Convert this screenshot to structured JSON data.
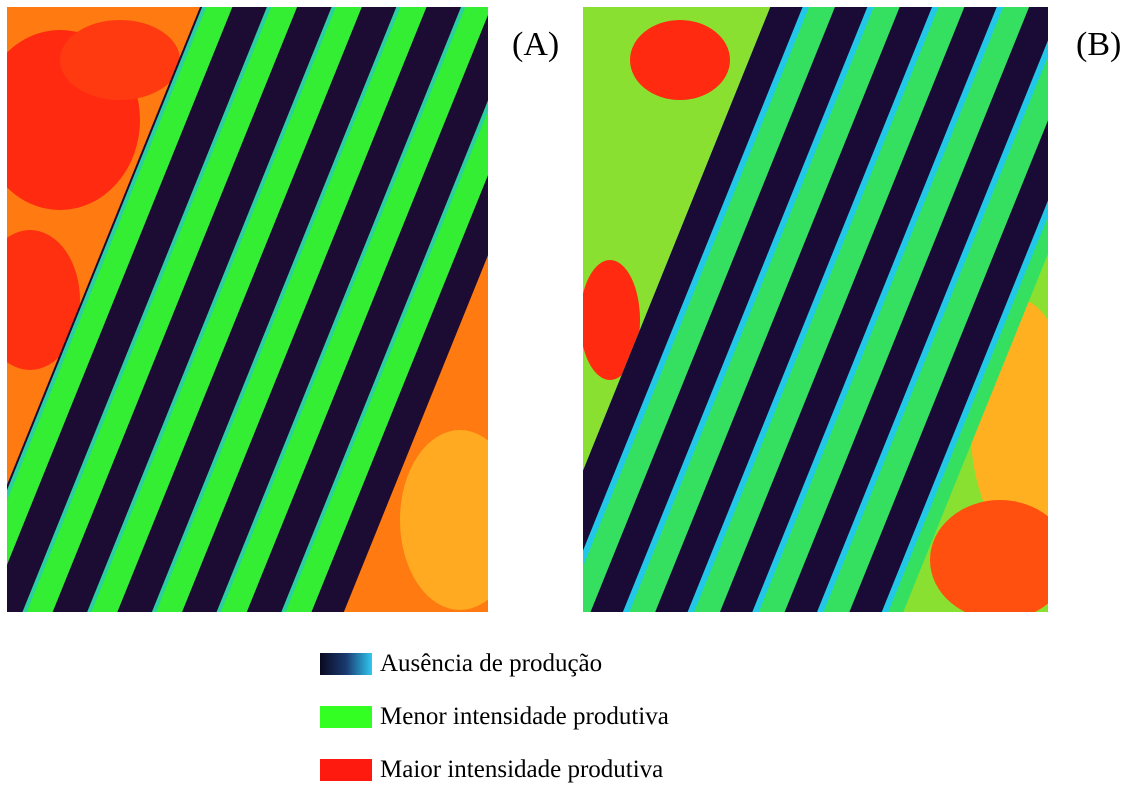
{
  "panels": [
    {
      "label": "(A)"
    },
    {
      "label": "(B)"
    }
  ],
  "legend": {
    "items": [
      {
        "label": "Ausência de produção"
      },
      {
        "label": "Menor intensidade produtiva"
      },
      {
        "label": "Maior intensidade produtiva"
      }
    ]
  }
}
